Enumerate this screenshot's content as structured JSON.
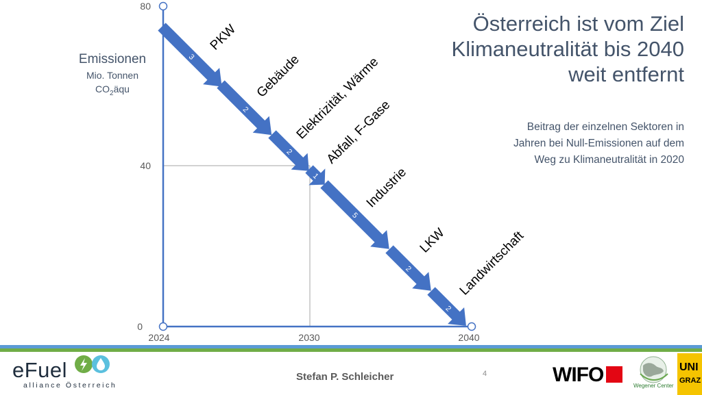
{
  "title_lines": [
    "Österreich ist vom Ziel",
    "Klimaneutralität bis 2040",
    "weit entfernt"
  ],
  "subtitle_lines": [
    "Beitrag der einzelnen Sektoren in",
    "Jahren bei Null-Emissionen auf dem",
    "Weg zu Klimaneutralität in 2020"
  ],
  "y_axis": {
    "label": "Emissionen",
    "unit_line1": "Mio. Tonnen",
    "unit_co2": "CO",
    "unit_sub": "2",
    "unit_rest": "äqu",
    "ticks": [
      "80",
      "40",
      "0"
    ]
  },
  "x_axis": {
    "ticks": [
      "2024",
      "2030",
      "2040"
    ]
  },
  "sectors": [
    {
      "name": "PKW",
      "years": "3"
    },
    {
      "name": "Gebäude",
      "years": "2"
    },
    {
      "name": "Elektrizität, Wärme",
      "years": "2"
    },
    {
      "name": "Abfall, F-Gase",
      "years": "1"
    },
    {
      "name": "Industrie",
      "years": "5"
    },
    {
      "name": "LKW",
      "years": "2"
    },
    {
      "name": "Landwirtschaft",
      "years": "2"
    }
  ],
  "footer": {
    "author": "Stefan P. Schleicher",
    "page": "4",
    "logo_efuel_word": "eFuel",
    "logo_efuel_sub": "alliance Österreich",
    "logo_wifo": "WIFO",
    "logo_wegener": "Wegener Center",
    "logo_uni_line1": "UNI",
    "logo_uni_line2": "GRAZ"
  },
  "colors": {
    "arrow": "#4472c4",
    "axis": "#4472c4",
    "text": "#44546a",
    "footer_blue": "#5b9bd5",
    "footer_green": "#70ad47"
  }
}
